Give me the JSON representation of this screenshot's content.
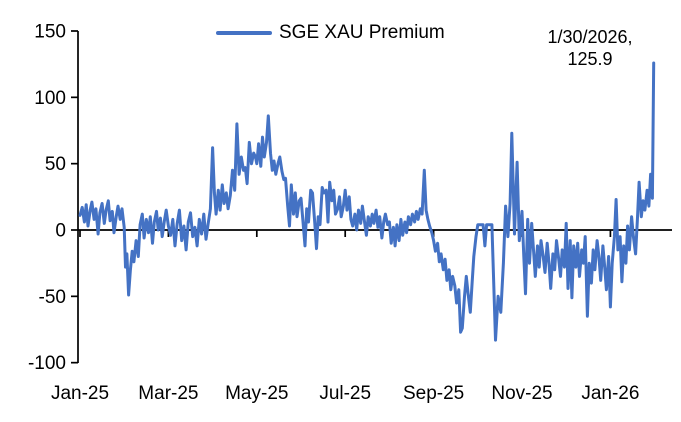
{
  "colors": {
    "line": "#4472C4",
    "axis": "#000000",
    "text": "#000000",
    "background": "#FFFFFF"
  },
  "legend": {
    "label": "SGE XAU Premium"
  },
  "annotation": {
    "line1": "1/30/2026,",
    "line2": "125.9"
  },
  "chart_data": {
    "type": "line",
    "title": "",
    "grid": false,
    "legend_position": "top-center",
    "legend_entries": [
      "SGE XAU Premium"
    ],
    "annotation_label": {
      "date": "1/30/2026",
      "value": 125.9
    },
    "x_axis": {
      "tick_labels": [
        "Jan-25",
        "Mar-25",
        "May-25",
        "Jul-25",
        "Sep-25",
        "Nov-25",
        "Jan-26"
      ],
      "tick_positions_months": [
        0,
        2,
        4,
        6,
        8,
        10,
        12
      ],
      "xlim_months": [
        0,
        13.4
      ]
    },
    "y_axis": {
      "tick_labels": [
        "150",
        "100",
        "50",
        "0",
        "-50",
        "-100"
      ],
      "ticks": [
        150,
        100,
        50,
        0,
        -50,
        -100
      ],
      "ylim": [
        -100,
        150
      ],
      "zero_baseline": true
    },
    "series": [
      {
        "name": "SGE XAU Premium",
        "color": "#4472C4",
        "x_unit": "months-since-Jan-2025",
        "points": [
          [
            0,
            11
          ],
          [
            0.05,
            17
          ],
          [
            0.1,
            6
          ],
          [
            0.14,
            19
          ],
          [
            0.18,
            3
          ],
          [
            0.23,
            15
          ],
          [
            0.27,
            21
          ],
          [
            0.32,
            8
          ],
          [
            0.36,
            16
          ],
          [
            0.41,
            -3
          ],
          [
            0.45,
            13
          ],
          [
            0.5,
            20
          ],
          [
            0.55,
            5
          ],
          [
            0.59,
            15
          ],
          [
            0.64,
            22
          ],
          [
            0.68,
            7
          ],
          [
            0.73,
            14
          ],
          [
            0.77,
            -2
          ],
          [
            0.82,
            10
          ],
          [
            0.86,
            18
          ],
          [
            0.91,
            8
          ],
          [
            0.95,
            16
          ],
          [
            1,
            2
          ],
          [
            1.03,
            -28
          ],
          [
            1.06,
            -18
          ],
          [
            1.1,
            -49
          ],
          [
            1.14,
            -30
          ],
          [
            1.18,
            -16
          ],
          [
            1.22,
            -24
          ],
          [
            1.27,
            -8
          ],
          [
            1.32,
            -20
          ],
          [
            1.36,
            4
          ],
          [
            1.41,
            12
          ],
          [
            1.45,
            -6
          ],
          [
            1.5,
            8
          ],
          [
            1.55,
            -2
          ],
          [
            1.59,
            10
          ],
          [
            1.64,
            -10
          ],
          [
            1.68,
            6
          ],
          [
            1.73,
            14
          ],
          [
            1.77,
            0
          ],
          [
            1.82,
            9
          ],
          [
            1.86,
            -5
          ],
          [
            1.91,
            7
          ],
          [
            1.95,
            15
          ],
          [
            2,
            3
          ],
          [
            2.05,
            -4
          ],
          [
            2.1,
            8
          ],
          [
            2.15,
            -12
          ],
          [
            2.2,
            5
          ],
          [
            2.25,
            15
          ],
          [
            2.3,
            -8
          ],
          [
            2.35,
            3
          ],
          [
            2.4,
            -15
          ],
          [
            2.45,
            6
          ],
          [
            2.5,
            13
          ],
          [
            2.55,
            -5
          ],
          [
            2.6,
            2
          ],
          [
            2.65,
            -12
          ],
          [
            2.7,
            8
          ],
          [
            2.75,
            -3
          ],
          [
            2.8,
            12
          ],
          [
            2.85,
            -7
          ],
          [
            2.9,
            5
          ],
          [
            2.95,
            16
          ],
          [
            3,
            62
          ],
          [
            3.04,
            28
          ],
          [
            3.08,
            12
          ],
          [
            3.13,
            30
          ],
          [
            3.17,
            15
          ],
          [
            3.22,
            34
          ],
          [
            3.26,
            20
          ],
          [
            3.31,
            28
          ],
          [
            3.35,
            16
          ],
          [
            3.4,
            26
          ],
          [
            3.45,
            45
          ],
          [
            3.5,
            30
          ],
          [
            3.55,
            80
          ],
          [
            3.6,
            42
          ],
          [
            3.65,
            55
          ],
          [
            3.7,
            45
          ],
          [
            3.74,
            47
          ],
          [
            3.78,
            35
          ],
          [
            3.83,
            66
          ],
          [
            3.88,
            50
          ],
          [
            3.93,
            58
          ],
          [
            3.97,
            55
          ],
          [
            4,
            50
          ],
          [
            4.04,
            65
          ],
          [
            4.09,
            48
          ],
          [
            4.13,
            70
          ],
          [
            4.17,
            55
          ],
          [
            4.22,
            66
          ],
          [
            4.26,
            86
          ],
          [
            4.31,
            58
          ],
          [
            4.35,
            45
          ],
          [
            4.39,
            52
          ],
          [
            4.43,
            42
          ],
          [
            4.48,
            50
          ],
          [
            4.52,
            55
          ],
          [
            4.57,
            44
          ],
          [
            4.61,
            38
          ],
          [
            4.65,
            39
          ],
          [
            4.7,
            18
          ],
          [
            4.74,
            3
          ],
          [
            4.78,
            34
          ],
          [
            4.83,
            12
          ],
          [
            4.87,
            28
          ],
          [
            4.91,
            10
          ],
          [
            4.96,
            22
          ],
          [
            5,
            24
          ],
          [
            5.04,
            8
          ],
          [
            5.09,
            -12
          ],
          [
            5.13,
            16
          ],
          [
            5.17,
            6
          ],
          [
            5.22,
            30
          ],
          [
            5.26,
            28
          ],
          [
            5.31,
            6
          ],
          [
            5.35,
            -14
          ],
          [
            5.39,
            10
          ],
          [
            5.43,
            4
          ],
          [
            5.48,
            32
          ],
          [
            5.52,
            28
          ],
          [
            5.57,
            30
          ],
          [
            5.61,
            6
          ],
          [
            5.65,
            36
          ],
          [
            5.7,
            22
          ],
          [
            5.74,
            30
          ],
          [
            5.78,
            12
          ],
          [
            5.83,
            16
          ],
          [
            5.87,
            25
          ],
          [
            5.91,
            10
          ],
          [
            5.96,
            18
          ],
          [
            6,
            30
          ],
          [
            6.04,
            15
          ],
          [
            6.09,
            25
          ],
          [
            6.13,
            8
          ],
          [
            6.17,
            3
          ],
          [
            6.22,
            12
          ],
          [
            6.26,
            0
          ],
          [
            6.3,
            15
          ],
          [
            6.35,
            5
          ],
          [
            6.39,
            18
          ],
          [
            6.43,
            8
          ],
          [
            6.48,
            -4
          ],
          [
            6.52,
            10
          ],
          [
            6.57,
            3
          ],
          [
            6.61,
            12
          ],
          [
            6.65,
            5
          ],
          [
            6.7,
            15
          ],
          [
            6.74,
            2
          ],
          [
            6.78,
            10
          ],
          [
            6.83,
            -6
          ],
          [
            6.87,
            6
          ],
          [
            6.91,
            12
          ],
          [
            6.96,
            4
          ],
          [
            7,
            6
          ],
          [
            7.04,
            -10
          ],
          [
            7.09,
            2
          ],
          [
            7.13,
            -12
          ],
          [
            7.17,
            4
          ],
          [
            7.22,
            -8
          ],
          [
            7.26,
            8
          ],
          [
            7.3,
            -4
          ],
          [
            7.35,
            6
          ],
          [
            7.39,
            -2
          ],
          [
            7.43,
            10
          ],
          [
            7.48,
            4
          ],
          [
            7.52,
            12
          ],
          [
            7.57,
            6
          ],
          [
            7.61,
            14
          ],
          [
            7.65,
            8
          ],
          [
            7.7,
            16
          ],
          [
            7.74,
            12
          ],
          [
            7.79,
            45
          ],
          [
            7.83,
            15
          ],
          [
            7.87,
            8
          ],
          [
            7.91,
            3
          ],
          [
            7.96,
            -2
          ],
          [
            8,
            -8
          ],
          [
            8.04,
            -16
          ],
          [
            8.09,
            -10
          ],
          [
            8.13,
            -24
          ],
          [
            8.17,
            -18
          ],
          [
            8.22,
            -30
          ],
          [
            8.26,
            -22
          ],
          [
            8.3,
            -38
          ],
          [
            8.35,
            -30
          ],
          [
            8.39,
            -45
          ],
          [
            8.43,
            -35
          ],
          [
            8.48,
            -42
          ],
          [
            8.52,
            -55
          ],
          [
            8.57,
            -45
          ],
          [
            8.61,
            -77
          ],
          [
            8.65,
            -74
          ],
          [
            8.7,
            -50
          ],
          [
            8.74,
            -35
          ],
          [
            8.78,
            -48
          ],
          [
            8.83,
            -62
          ],
          [
            8.87,
            -40
          ],
          [
            8.91,
            -20
          ],
          [
            8.96,
            -5
          ],
          [
            9,
            4
          ],
          [
            9.06,
            4
          ],
          [
            9.12,
            4
          ],
          [
            9.16,
            -12
          ],
          [
            9.2,
            4
          ],
          [
            9.26,
            4
          ],
          [
            9.32,
            4
          ],
          [
            9.4,
            -83
          ],
          [
            9.46,
            -50
          ],
          [
            9.52,
            -62
          ],
          [
            9.58,
            -25
          ],
          [
            9.63,
            18
          ],
          [
            9.68,
            -5
          ],
          [
            9.73,
            20
          ],
          [
            9.77,
            73
          ],
          [
            9.83,
            -3
          ],
          [
            9.89,
            51
          ],
          [
            9.94,
            -8
          ],
          [
            10,
            14
          ],
          [
            10.04,
            -20
          ],
          [
            10.08,
            -48
          ],
          [
            10.13,
            8
          ],
          [
            10.17,
            -25
          ],
          [
            10.22,
            5
          ],
          [
            10.26,
            -15
          ],
          [
            10.3,
            -35
          ],
          [
            10.35,
            -12
          ],
          [
            10.39,
            -28
          ],
          [
            10.43,
            -8
          ],
          [
            10.48,
            -20
          ],
          [
            10.52,
            -32
          ],
          [
            10.57,
            -10
          ],
          [
            10.61,
            -25
          ],
          [
            10.65,
            -44
          ],
          [
            10.7,
            -18
          ],
          [
            10.74,
            -30
          ],
          [
            10.78,
            -8
          ],
          [
            10.83,
            -22
          ],
          [
            10.87,
            -35
          ],
          [
            10.91,
            -15
          ],
          [
            10.96,
            -28
          ],
          [
            11,
            5
          ],
          [
            11.04,
            -44
          ],
          [
            11.09,
            -8
          ],
          [
            11.13,
            -51
          ],
          [
            11.17,
            -12
          ],
          [
            11.22,
            -28
          ],
          [
            11.26,
            -10
          ],
          [
            11.3,
            -35
          ],
          [
            11.35,
            -15
          ],
          [
            11.39,
            -25
          ],
          [
            11.43,
            -5
          ],
          [
            11.48,
            -65
          ],
          [
            11.52,
            -25
          ],
          [
            11.57,
            -40
          ],
          [
            11.61,
            -15
          ],
          [
            11.65,
            -30
          ],
          [
            11.7,
            -8
          ],
          [
            11.74,
            -20
          ],
          [
            11.78,
            -38
          ],
          [
            11.83,
            -12
          ],
          [
            11.87,
            -28
          ],
          [
            11.91,
            -45
          ],
          [
            11.96,
            -20
          ],
          [
            12,
            -58
          ],
          [
            12.04,
            -25
          ],
          [
            12.09,
            -5
          ],
          [
            12.13,
            23
          ],
          [
            12.17,
            -15
          ],
          [
            12.22,
            -5
          ],
          [
            12.26,
            -39
          ],
          [
            12.3,
            -12
          ],
          [
            12.35,
            -25
          ],
          [
            12.39,
            3
          ],
          [
            12.43,
            -15
          ],
          [
            12.48,
            10
          ],
          [
            12.52,
            -5
          ],
          [
            12.57,
            -18
          ],
          [
            12.61,
            8
          ],
          [
            12.65,
            36
          ],
          [
            12.7,
            10
          ],
          [
            12.74,
            22
          ],
          [
            12.78,
            15
          ],
          [
            12.83,
            30
          ],
          [
            12.87,
            18
          ],
          [
            12.91,
            42
          ],
          [
            12.95,
            24
          ],
          [
            12.98,
            125.9
          ]
        ]
      }
    ]
  }
}
